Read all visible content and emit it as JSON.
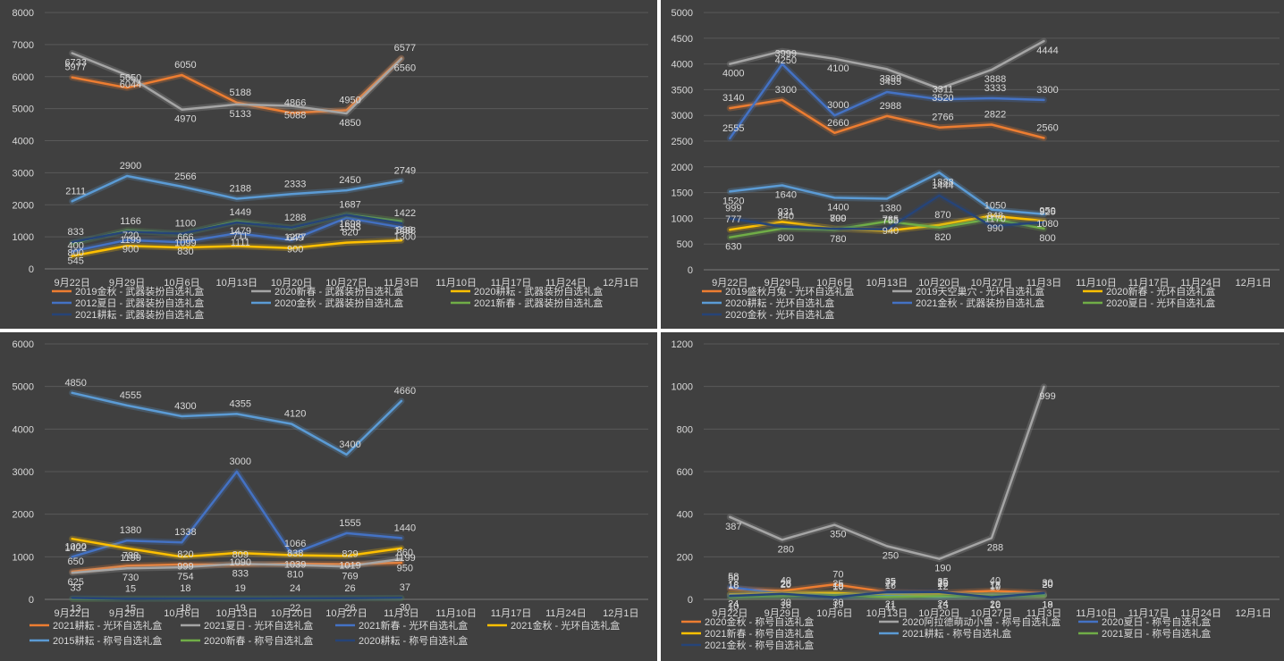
{
  "charts": [
    {
      "type": "line",
      "categories": [
        "9月22日",
        "9月29日",
        "10月6日",
        "10月13日",
        "10月20日",
        "10月27日",
        "11月3日",
        "11月10日",
        "11月17日",
        "11月24日",
        "12月1日"
      ],
      "ylim": [
        0,
        8000
      ],
      "yticks": [
        0,
        1000,
        2000,
        3000,
        4000,
        5000,
        6000,
        7000,
        8000
      ],
      "series": [
        {
          "name": "2019金秋 - 武器装扮自选礼盒",
          "color": "#ed7d31",
          "values": [
            5977,
            5650,
            6050,
            5188,
            4866,
            4950,
            6577
          ]
        },
        {
          "name": "2020新春 - 武器装扮自选礼盒",
          "color": "#a5a5a5",
          "values": [
            6733,
            6044,
            4970,
            5133,
            5088,
            4850,
            6560
          ]
        },
        {
          "name": "2020耕耘 - 武器装扮自选礼盒",
          "color": "#ffc000",
          "values": [
            400,
            720,
            666,
            711,
            649,
            820,
            888
          ]
        },
        {
          "name": "2012夏日 - 武器装扮自选礼盒",
          "color": "#4472c4",
          "values": [
            545,
            900,
            830,
            1111,
            900,
            1593,
            1300
          ]
        },
        {
          "name": "2020金秋 - 武器装扮自选礼盒",
          "color": "#5b9bd5",
          "values": [
            2111,
            2900,
            2566,
            2188,
            2333,
            2450,
            2749
          ]
        },
        {
          "name": "2021新春 - 武器装扮自选礼盒",
          "color": "#70ad47",
          "values": [
            800,
            1199,
            1099,
            1479,
            1277,
            1698,
            1488
          ]
        },
        {
          "name": "2021耕耘 - 武器装扮自选礼盒",
          "color": "#264478",
          "values": [
            833,
            1166,
            1100,
            1449,
            1288,
            1687,
            1422
          ]
        }
      ]
    },
    {
      "type": "line",
      "categories": [
        "9月22日",
        "9月29日",
        "10月6日",
        "10月13日",
        "10月20日",
        "10月27日",
        "11月3日",
        "11月10日",
        "11月17日",
        "11月24日",
        "12月1日"
      ],
      "ylim": [
        0,
        5000
      ],
      "yticks": [
        0,
        500,
        1000,
        1500,
        2000,
        2500,
        3000,
        3500,
        4000,
        4500,
        5000
      ],
      "series": [
        {
          "name": "2019盛秋月兔 - 光环自选礼盒",
          "color": "#ed7d31",
          "values": [
            3140,
            3300,
            2660,
            2988,
            2766,
            2822,
            2560
          ]
        },
        {
          "name": "2019天空巢穴 - 光环自选礼盒",
          "color": "#a5a5a5",
          "values": [
            4000,
            4250,
            4100,
            3899,
            3520,
            3888,
            4444
          ]
        },
        {
          "name": "2020新春 - 光环自选礼盒",
          "color": "#ffc000",
          "values": [
            777,
            931,
            800,
            755,
            870,
            1050,
            950
          ]
        },
        {
          "name": "2020耕耘 - 光环自选礼盒",
          "color": "#5b9bd5",
          "values": [
            1520,
            1640,
            1400,
            1380,
            1888,
            1170,
            1080
          ]
        },
        {
          "name": "2021金秋 - 武器装扮自选礼盒",
          "color": "#4472c4",
          "values": [
            2555,
            3999,
            3000,
            3455,
            3311,
            3333,
            3300
          ]
        },
        {
          "name": "2020夏日 - 光环自选礼盒",
          "color": "#70ad47",
          "values": [
            630,
            800,
            780,
            940,
            820,
            990,
            800
          ]
        },
        {
          "name": "2020金秋 - 光环自选礼盒",
          "color": "#264478",
          "values": [
            999,
            840,
            799,
            785,
            1444,
            848,
            925
          ]
        }
      ]
    },
    {
      "type": "line",
      "categories": [
        "9月22日",
        "9月29日",
        "10月6日",
        "10月13日",
        "10月20日",
        "10月27日",
        "11月3日",
        "11月10日",
        "11月17日",
        "11月24日",
        "12月1日"
      ],
      "ylim": [
        0,
        6000
      ],
      "yticks": [
        0,
        1000,
        2000,
        3000,
        4000,
        5000,
        6000
      ],
      "series": [
        {
          "name": "2021耕耘 - 光环自选礼盒",
          "color": "#ed7d31",
          "values": [
            650,
            788,
            820,
            809,
            838,
            829,
            860
          ]
        },
        {
          "name": "2021夏日 - 光环自选礼盒",
          "color": "#a5a5a5",
          "values": [
            625,
            730,
            754,
            833,
            810,
            769,
            950
          ]
        },
        {
          "name": "2021新春 - 光环自选礼盒",
          "color": "#4472c4",
          "values": [
            1000,
            1380,
            1338,
            3000,
            1066,
            1555,
            1440
          ]
        },
        {
          "name": "2021金秋 - 光环自选礼盒",
          "color": "#ffc000",
          "values": [
            1422,
            1199,
            999,
            1090,
            1039,
            1019,
            1199
          ]
        },
        {
          "name": "2015耕耘 - 称号自选礼盒",
          "color": "#5b9bd5",
          "values": [
            4850,
            4555,
            4300,
            4355,
            4120,
            3400,
            4660
          ]
        },
        {
          "name": "2020新春 - 称号自选礼盒",
          "color": "#70ad47",
          "values": [
            13,
            15,
            18,
            19,
            22,
            26,
            30
          ]
        },
        {
          "name": "2020耕耘 - 称号自选礼盒",
          "color": "#264478",
          "values": [
            33,
            15,
            18,
            19,
            24,
            26,
            37
          ]
        }
      ]
    },
    {
      "type": "line",
      "categories": [
        "9月22日",
        "9月29日",
        "10月6日",
        "10月13日",
        "10月20日",
        "10月27日",
        "11月3日",
        "11月10日",
        "11月17日",
        "11月24日",
        "12月1日"
      ],
      "ylim": [
        0,
        1200
      ],
      "yticks": [
        0,
        200,
        400,
        600,
        800,
        1000,
        1200
      ],
      "series": [
        {
          "name": "2020金秋 - 称号自选礼盒",
          "color": "#ed7d31",
          "values": [
            50,
            40,
            70,
            35,
            30,
            40,
            30
          ]
        },
        {
          "name": "2020阿拉德萌动小兽 - 称号自选礼盒",
          "color": "#a5a5a5",
          "values": [
            387,
            280,
            350,
            250,
            190,
            288,
            999
          ]
        },
        {
          "name": "2020夏日 - 称号自选礼盒",
          "color": "#4472c4",
          "values": [
            58,
            26,
            25,
            27,
            25,
            17,
            20
          ]
        },
        {
          "name": "2021新春 - 称号自选礼盒",
          "color": "#ffc000",
          "values": [
            24,
            30,
            30,
            21,
            24,
            20,
            19
          ]
        },
        {
          "name": "2021耕耘 - 称号自选礼盒",
          "color": "#5b9bd5",
          "values": [
            18,
            20,
            15,
            16,
            12,
            18,
            20
          ]
        },
        {
          "name": "2021夏日 - 称号自选礼盒",
          "color": "#70ad47",
          "values": [
            10,
            16,
            19,
            11,
            15,
            16,
            18
          ]
        },
        {
          "name": "2021金秋 - 称号自选礼盒",
          "color": "#264478",
          "values": [
            16,
            26,
            10,
            35,
            35,
            10,
            30
          ]
        }
      ]
    }
  ]
}
